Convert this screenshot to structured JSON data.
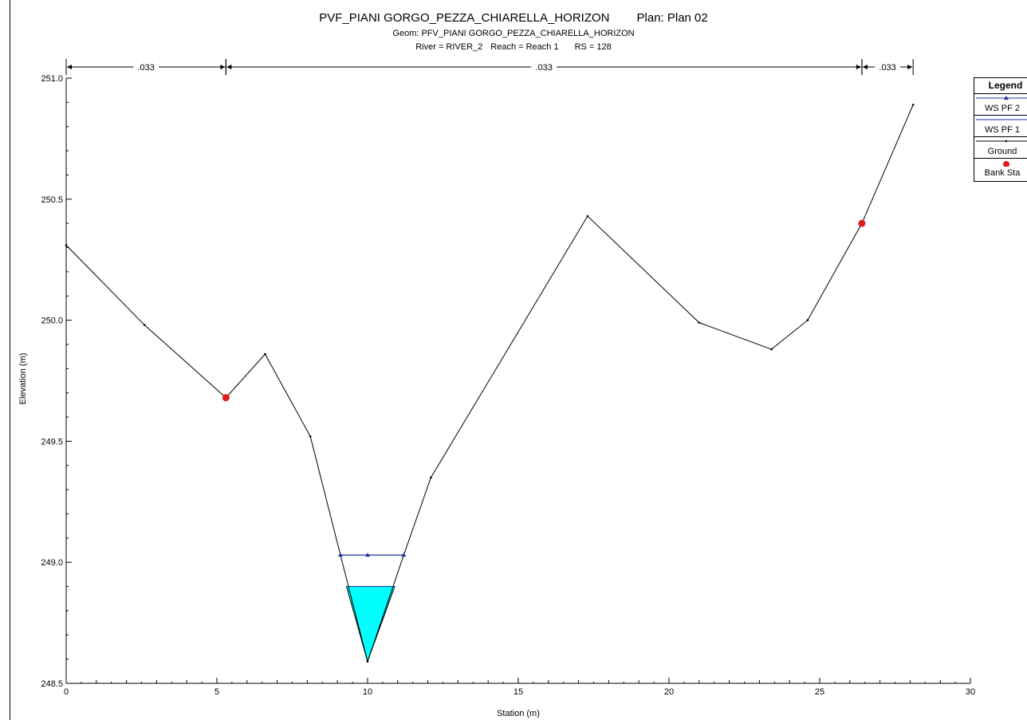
{
  "titles": {
    "main": "PVF_PIANI GORGO_PEZZA_CHIARELLA_HORIZON",
    "plan": "Plan: Plan 02",
    "geom": "Geom: PFV_PIANI GORGO_PEZZA_CHIARELLA_HORIZON",
    "river": "River = RIVER_2",
    "reach": "Reach = Reach 1",
    "rs": "RS = 128"
  },
  "legend": {
    "title": "Legend",
    "items": [
      "WS PF 2",
      "WS PF 1",
      "Ground",
      "Bank Sta"
    ]
  },
  "colors": {
    "ground": "#000000",
    "ws_pf2": "#1f2fa0",
    "ws_pf1_fill": "#00ffff",
    "bank_station": "#e31a1c"
  },
  "chart_data": {
    "type": "line",
    "xlabel": "Station (m)",
    "ylabel": "Elevation (m)",
    "xlim": [
      0,
      30
    ],
    "ylim": [
      248.5,
      251.0
    ],
    "x_ticks": [
      0,
      5,
      10,
      15,
      20,
      25,
      30
    ],
    "y_ticks": [
      248.5,
      249.0,
      249.5,
      250.0,
      250.5,
      251.0
    ],
    "x_tick_labels": [
      "0",
      "5",
      "10",
      "15",
      "20",
      "25",
      "30"
    ],
    "y_tick_labels": [
      "248.5",
      "249.0",
      "249.5",
      "250.0",
      "250.5",
      "251.0"
    ],
    "series": [
      {
        "name": "Ground",
        "x": [
          0,
          2.6,
          5.3,
          6.6,
          8.1,
          9.1,
          10.0,
          11.2,
          12.1,
          17.3,
          21.0,
          23.4,
          24.6,
          26.4,
          28.1
        ],
        "y": [
          250.31,
          249.98,
          249.68,
          249.86,
          249.52,
          249.03,
          248.59,
          249.03,
          249.35,
          250.43,
          249.99,
          249.88,
          250.0,
          250.4,
          250.89
        ]
      },
      {
        "name": "WS PF 2",
        "x": [
          9.1,
          10.0,
          11.2
        ],
        "y": [
          249.03,
          249.03,
          249.03
        ]
      },
      {
        "name": "WS PF 1",
        "x": [
          9.3,
          10.0,
          10.9
        ],
        "y": [
          248.9,
          248.59,
          248.9
        ]
      },
      {
        "name": "Bank Sta",
        "x": [
          5.3,
          26.4
        ],
        "y": [
          249.68,
          250.4
        ]
      }
    ],
    "manning_n": [
      {
        "label": ".033",
        "x_start": 0,
        "x_end": 5.3
      },
      {
        "label": ".033",
        "x_start": 5.3,
        "x_end": 26.4
      },
      {
        "label": ".033",
        "x_start": 26.4,
        "x_end": 28.1
      }
    ],
    "grid": false,
    "legend_position": "right"
  }
}
